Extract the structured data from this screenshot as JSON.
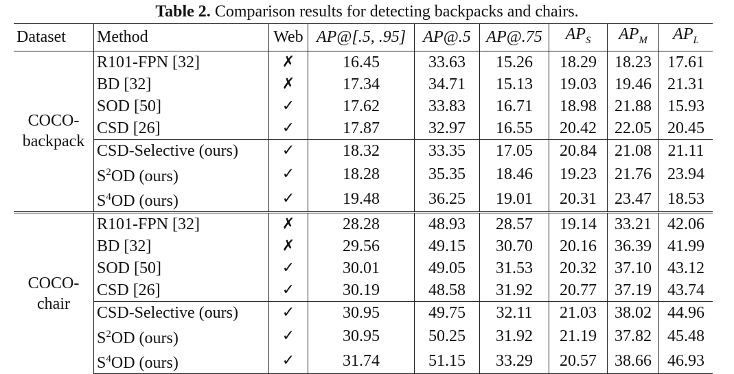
{
  "caption": {
    "label": "Table 2.",
    "text": "Comparison results for detecting backpacks and chairs."
  },
  "headers": {
    "dataset": "Dataset",
    "method": "Method",
    "web": "Web",
    "ap": "AP@[.5, .95]",
    "ap50": "AP@.5",
    "ap75": "AP@.75",
    "aps": "AP",
    "aps_sub": "S",
    "apm": "AP",
    "apm_sub": "M",
    "apl": "AP",
    "apl_sub": "L"
  },
  "groups": [
    {
      "dataset_line1": "COCO-",
      "dataset_line2": "backpack",
      "rows": [
        {
          "method": "R101-FPN [32]",
          "web": "✗",
          "ap": "16.45",
          "ap50": "33.63",
          "ap75": "15.26",
          "aps": "18.29",
          "apm": "18.23",
          "apl": "17.61"
        },
        {
          "method": "BD [32]",
          "web": "✗",
          "ap": "17.34",
          "ap50": "34.71",
          "ap75": "15.13",
          "aps": "19.03",
          "apm": "19.46",
          "apl": "21.31"
        },
        {
          "method": "SOD [50]",
          "web": "✓",
          "ap": "17.62",
          "ap50": "33.83",
          "ap75": "16.71",
          "aps": "18.98",
          "apm": "21.88",
          "apl": "15.93"
        },
        {
          "method": "CSD [26]",
          "web": "✓",
          "ap": "17.87",
          "ap50": "32.97",
          "ap75": "16.55",
          "aps": "20.42",
          "apm": "22.05",
          "apl": "20.45"
        },
        {
          "method": "CSD-Selective (ours)",
          "web": "✓",
          "ap": "18.32",
          "ap50": "33.35",
          "ap75": "17.05",
          "aps": "20.84",
          "apm": "21.08",
          "apl": "21.11"
        },
        {
          "method_pre": "S",
          "method_sup": "2",
          "method_post": "OD (ours)",
          "web": "✓",
          "ap": "18.28",
          "ap50": "35.35",
          "ap75": "18.46",
          "aps": "19.23",
          "apm": "21.76",
          "apl": "23.94"
        },
        {
          "method_pre": "S",
          "method_sup": "4",
          "method_post": "OD (ours)",
          "web": "✓",
          "ap": "19.48",
          "ap50": "36.25",
          "ap75": "19.01",
          "aps": "20.31",
          "apm": "23.47",
          "apl": "18.53"
        }
      ]
    },
    {
      "dataset_line1": "COCO-",
      "dataset_line2": "chair",
      "rows": [
        {
          "method": "R101-FPN [32]",
          "web": "✗",
          "ap": "28.28",
          "ap50": "48.93",
          "ap75": "28.57",
          "aps": "19.14",
          "apm": "33.21",
          "apl": "42.06"
        },
        {
          "method": "BD [32]",
          "web": "✗",
          "ap": "29.56",
          "ap50": "49.15",
          "ap75": "30.70",
          "aps": "20.16",
          "apm": "36.39",
          "apl": "41.99"
        },
        {
          "method": "SOD [50]",
          "web": "✓",
          "ap": "30.01",
          "ap50": "49.05",
          "ap75": "31.53",
          "aps": "20.32",
          "apm": "37.10",
          "apl": "43.12"
        },
        {
          "method": "CSD [26]",
          "web": "✓",
          "ap": "30.19",
          "ap50": "48.58",
          "ap75": "31.92",
          "aps": "20.77",
          "apm": "37.19",
          "apl": "43.74"
        },
        {
          "method": "CSD-Selective (ours)",
          "web": "✓",
          "ap": "30.95",
          "ap50": "49.75",
          "ap75": "32.11",
          "aps": "21.03",
          "apm": "38.02",
          "apl": "44.96"
        },
        {
          "method_pre": "S",
          "method_sup": "2",
          "method_post": "OD (ours)",
          "web": "✓",
          "ap": "30.95",
          "ap50": "50.25",
          "ap75": "31.92",
          "aps": "21.19",
          "apm": "37.82",
          "apl": "45.48"
        },
        {
          "method_pre": "S",
          "method_sup": "4",
          "method_post": "OD (ours)",
          "web": "✓",
          "ap": "31.74",
          "ap50": "51.15",
          "ap75": "33.29",
          "aps": "20.57",
          "apm": "38.66",
          "apl": "46.93"
        }
      ]
    }
  ]
}
